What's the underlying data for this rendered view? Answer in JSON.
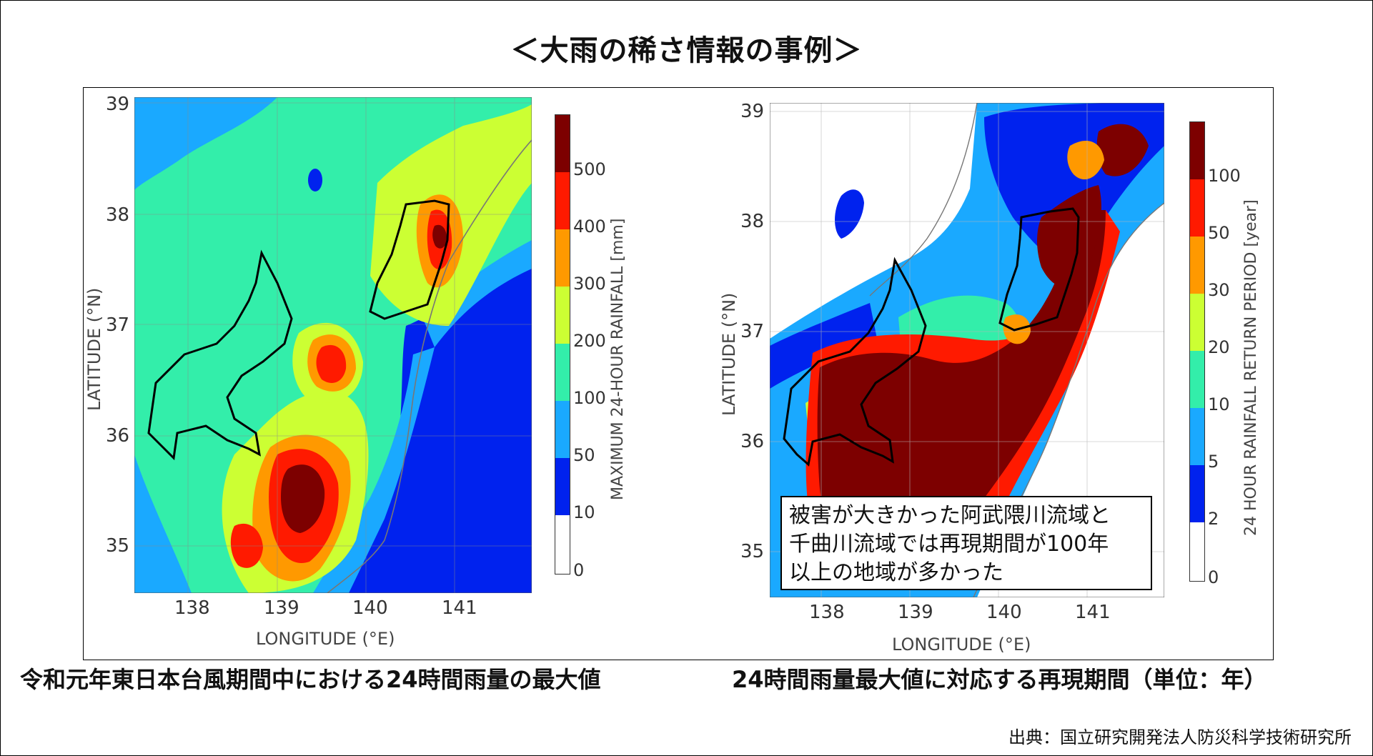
{
  "page_title": "＜大雨の稀さ情報の事例＞",
  "left_map": {
    "caption": "令和元年東日本台風期間中における24時間雨量の最大値",
    "xlabel": "LONGITUDE (°E)",
    "ylabel": "LATITUDE (°N)",
    "x_ticks": [
      "138",
      "139",
      "140",
      "141"
    ],
    "y_ticks": [
      "39",
      "38",
      "37",
      "36",
      "35"
    ],
    "colorbar_label": "MAXIMUM 24-HOUR RAINFALL [mm]",
    "colorbar_ticks": [
      "500",
      "400",
      "300",
      "200",
      "100",
      "50",
      "10",
      "0"
    ],
    "colorbar_colors": [
      "#7d0000",
      "#ff1a00",
      "#ff9900",
      "#ccff33",
      "#33eeaa",
      "#1aa9ff",
      "#0022ee",
      "#ffffff"
    ]
  },
  "right_map": {
    "caption": "24時間雨量最大値に対応する再現期間（単位：年）",
    "xlabel": "LONGITUDE (°E)",
    "ylabel": "LATITUDE (°N)",
    "x_ticks": [
      "138",
      "139",
      "140",
      "141"
    ],
    "y_ticks": [
      "39",
      "38",
      "37",
      "36",
      "35"
    ],
    "colorbar_label": "24 HOUR RAINFALL RETURN PERIOD [year]",
    "colorbar_ticks": [
      "100",
      "50",
      "30",
      "20",
      "10",
      "5",
      "2",
      "0"
    ],
    "colorbar_colors": [
      "#7d0000",
      "#ff1a00",
      "#ff9900",
      "#ccff33",
      "#33eeaa",
      "#1aa9ff",
      "#0022ee",
      "#ffffff"
    ],
    "annotation_lines": [
      "被害が大きかった阿武隈川流域と",
      "千曲川流域では再現期間が100年",
      "以上の地域が多かった"
    ]
  },
  "source": "出典：国立研究開発法人防災科学技術研究所"
}
